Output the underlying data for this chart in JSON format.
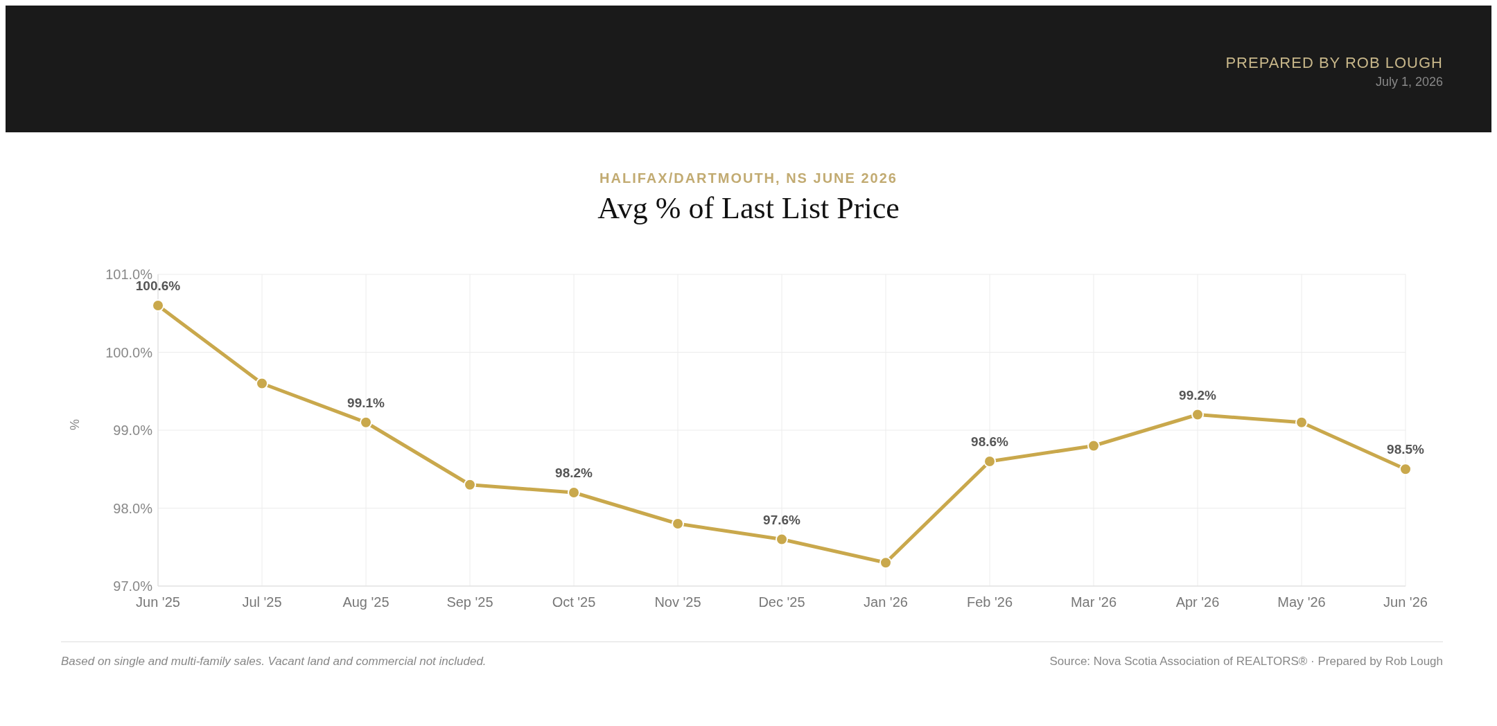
{
  "chart_data": {
    "type": "line",
    "subtitle": "HALIFAX/DARTMOUTH, NS JUNE 2026",
    "title": "Avg % of Last List Price",
    "ylabel": "%",
    "categories": [
      "Jun '25",
      "Jul '25",
      "Aug '25",
      "Sep '25",
      "Oct '25",
      "Nov '25",
      "Dec '25",
      "Jan '26",
      "Feb '26",
      "Mar '26",
      "Apr '26",
      "May '26",
      "Jun '26"
    ],
    "series": [
      {
        "color": "#c9a84c",
        "values": [
          100.6,
          99.6,
          99.1,
          98.3,
          98.2,
          97.8,
          97.6,
          97.3,
          98.6,
          98.8,
          99.2,
          99.1,
          98.5
        ],
        "value_labels": [
          "100.6%",
          null,
          "99.1%",
          null,
          "98.2%",
          null,
          "97.6%",
          null,
          "98.6%",
          null,
          "99.2%",
          null,
          "98.5%"
        ]
      }
    ],
    "ylim": [
      97,
      101
    ],
    "yticks": [
      {
        "value": 97,
        "label": "97.0%"
      },
      {
        "value": 98,
        "label": "98.0%"
      },
      {
        "value": 99,
        "label": "99.0%"
      },
      {
        "value": 100,
        "label": "100.0%"
      },
      {
        "value": 101,
        "label": "101.0%"
      }
    ],
    "grid": true,
    "marker": "circle",
    "line_style": "solid",
    "legend": false,
    "annotations": [
      "PREPARED BY ROB LOUGH",
      "July 1, 2026",
      "Based on single and multi-family sales. Vacant land and commercial not included.",
      "Source: Nova Scotia Association of REALTORS® · Prepared by Rob Lough"
    ]
  }
}
